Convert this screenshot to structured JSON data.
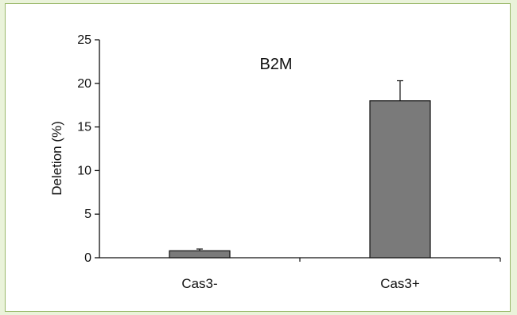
{
  "chart_data": {
    "type": "bar",
    "title": "B2M",
    "ylabel": "Deletion (%)",
    "xlabel": "",
    "categories": [
      "Cas3-",
      "Cas3+"
    ],
    "values": [
      0.8,
      18.0
    ],
    "error": [
      0.2,
      2.3
    ],
    "ylim": [
      0,
      25
    ],
    "yticks": [
      "0",
      "5",
      "10",
      "15",
      "20",
      "25"
    ],
    "grid": false,
    "bar_color": "#7a7a7a"
  }
}
